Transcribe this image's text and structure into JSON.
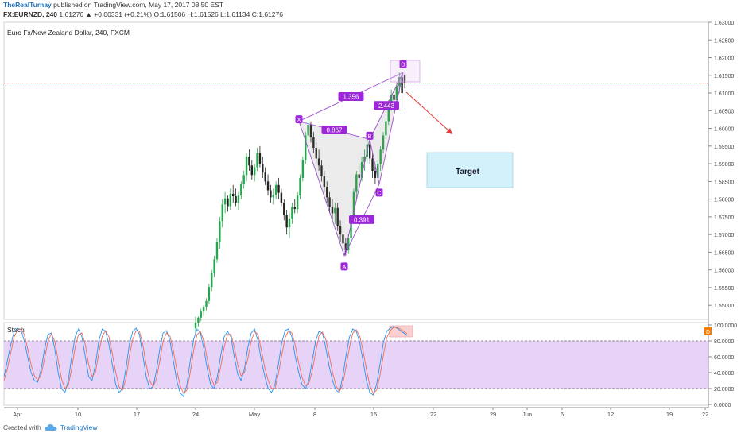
{
  "header": {
    "publisher": "TheRealTurnay",
    "published_text": "published on TradingView.com, May 17, 2017 08:50 EST",
    "symbol": "FX:EURNZD, 240",
    "last": "1.61276",
    "change_arrow": "▲",
    "change": "+0.00331 (+0.21%)",
    "o_label": "O:",
    "o_value": "1.61506",
    "h_label": "H:",
    "h_value": "1.61526",
    "l_label": "L:",
    "l_value": "1.61134",
    "c_label": "C:",
    "c_value": "1.61276"
  },
  "footer": {
    "created_with": "Created with",
    "brand": "TradingView",
    "logo_icon": "tradingview-cloud-icon"
  },
  "chart_data": [
    {
      "type": "candlestick",
      "title": "Euro Fx/New Zealand Dollar, 240, FXCM",
      "ylim": [
        1.546,
        1.63
      ],
      "y_ticks": [
        "1.63000",
        "1.62500",
        "1.62000",
        "1.61500",
        "1.61000",
        "1.60500",
        "1.60000",
        "1.59500",
        "1.59000",
        "1.58500",
        "1.58000",
        "1.57500",
        "1.57000",
        "1.56500",
        "1.56000",
        "1.55500",
        "1.55000"
      ],
      "x_ticks": [
        "Apr",
        "10",
        "17",
        "24",
        "May",
        "8",
        "15",
        "22",
        "29",
        "Jun",
        "6",
        "12",
        "19",
        "22"
      ],
      "current_price_line": 1.6128,
      "pattern": {
        "name": "Bat",
        "points": [
          {
            "label": "X",
            "x": "2017-05-06",
            "y": 1.602
          },
          {
            "label": "A",
            "x": "2017-05-10",
            "y": 1.564
          },
          {
            "label": "B",
            "x": "2017-05-13",
            "y": 1.5969
          },
          {
            "label": "C",
            "x": "2017-05-15",
            "y": 1.5842
          },
          {
            "label": "D",
            "x": "2017-05-17",
            "y": 1.6158
          }
        ],
        "ratios": [
          "1.356",
          "0.867",
          "2.443",
          "0.391"
        ]
      },
      "annotation": {
        "text": "Target"
      },
      "candles_ohlc": [
        [
          1.5435,
          1.5468,
          1.542,
          1.545
        ],
        [
          1.545,
          1.5468,
          1.544,
          1.5465
        ],
        [
          1.5465,
          1.549,
          1.5455,
          1.5482
        ],
        [
          1.5482,
          1.55,
          1.547,
          1.5495
        ],
        [
          1.5495,
          1.552,
          1.5485,
          1.5512
        ],
        [
          1.5512,
          1.556,
          1.5505,
          1.5552
        ],
        [
          1.5552,
          1.56,
          1.554,
          1.559
        ],
        [
          1.559,
          1.564,
          1.558,
          1.563
        ],
        [
          1.563,
          1.569,
          1.562,
          1.568
        ],
        [
          1.568,
          1.575,
          1.566,
          1.5738
        ],
        [
          1.5738,
          1.58,
          1.572,
          1.5785
        ],
        [
          1.5785,
          1.582,
          1.576,
          1.5802
        ],
        [
          1.5802,
          1.581,
          1.5765,
          1.578
        ],
        [
          1.578,
          1.583,
          1.577,
          1.5815
        ],
        [
          1.5815,
          1.584,
          1.579,
          1.5808
        ],
        [
          1.5808,
          1.583,
          1.578,
          1.579
        ],
        [
          1.579,
          1.582,
          1.577,
          1.581
        ],
        [
          1.581,
          1.585,
          1.58,
          1.5842
        ],
        [
          1.5842,
          1.588,
          1.583,
          1.5868
        ],
        [
          1.5868,
          1.593,
          1.585,
          1.592
        ],
        [
          1.592,
          1.594,
          1.588,
          1.5895
        ],
        [
          1.5895,
          1.591,
          1.5855,
          1.5868
        ],
        [
          1.5868,
          1.59,
          1.585,
          1.589
        ],
        [
          1.589,
          1.5945,
          1.588,
          1.593
        ],
        [
          1.593,
          1.595,
          1.589,
          1.59
        ],
        [
          1.59,
          1.592,
          1.586,
          1.5875
        ],
        [
          1.5875,
          1.589,
          1.584,
          1.585
        ],
        [
          1.585,
          1.587,
          1.581,
          1.5825
        ],
        [
          1.5825,
          1.584,
          1.579,
          1.5805
        ],
        [
          1.5805,
          1.583,
          1.5785,
          1.5812
        ],
        [
          1.5812,
          1.585,
          1.58,
          1.584
        ],
        [
          1.584,
          1.586,
          1.58,
          1.5818
        ],
        [
          1.5818,
          1.583,
          1.578,
          1.579
        ],
        [
          1.579,
          1.58,
          1.574,
          1.5755
        ],
        [
          1.5755,
          1.577,
          1.57,
          1.572
        ],
        [
          1.572,
          1.576,
          1.569,
          1.5745
        ],
        [
          1.5745,
          1.579,
          1.573,
          1.5778
        ],
        [
          1.5778,
          1.58,
          1.576,
          1.5772
        ],
        [
          1.5772,
          1.582,
          1.576,
          1.581
        ],
        [
          1.581,
          1.587,
          1.58,
          1.586
        ],
        [
          1.586,
          1.592,
          1.585,
          1.591
        ],
        [
          1.591,
          1.599,
          1.59,
          1.598
        ],
        [
          1.598,
          1.6025,
          1.5965,
          1.601
        ],
        [
          1.601,
          1.602,
          1.596,
          1.5975
        ],
        [
          1.5975,
          1.599,
          1.593,
          1.5945
        ],
        [
          1.5945,
          1.596,
          1.59,
          1.5915
        ],
        [
          1.5915,
          1.594,
          1.588,
          1.5895
        ],
        [
          1.5895,
          1.591,
          1.585,
          1.5865
        ],
        [
          1.5865,
          1.588,
          1.582,
          1.5835
        ],
        [
          1.5835,
          1.585,
          1.579,
          1.5805
        ],
        [
          1.5805,
          1.582,
          1.576,
          1.5778
        ],
        [
          1.5778,
          1.58,
          1.574,
          1.576
        ],
        [
          1.576,
          1.579,
          1.573,
          1.5775
        ],
        [
          1.5775,
          1.579,
          1.571,
          1.5725
        ],
        [
          1.5725,
          1.574,
          1.568,
          1.57
        ],
        [
          1.57,
          1.572,
          1.566,
          1.5675
        ],
        [
          1.5675,
          1.569,
          1.564,
          1.5655
        ],
        [
          1.5655,
          1.57,
          1.5645,
          1.569
        ],
        [
          1.569,
          1.576,
          1.568,
          1.575
        ],
        [
          1.575,
          1.583,
          1.574,
          1.582
        ],
        [
          1.582,
          1.588,
          1.58,
          1.587
        ],
        [
          1.587,
          1.59,
          1.584,
          1.586
        ],
        [
          1.586,
          1.592,
          1.585,
          1.5905
        ],
        [
          1.5905,
          1.594,
          1.588,
          1.592
        ],
        [
          1.592,
          1.597,
          1.59,
          1.5955
        ],
        [
          1.5955,
          1.5965,
          1.59,
          1.5915
        ],
        [
          1.5915,
          1.593,
          1.586,
          1.588
        ],
        [
          1.588,
          1.59,
          1.5842,
          1.586
        ],
        [
          1.586,
          1.591,
          1.585,
          1.59
        ],
        [
          1.59,
          1.595,
          1.588,
          1.594
        ],
        [
          1.594,
          1.599,
          1.593,
          1.598
        ],
        [
          1.598,
          1.603,
          1.597,
          1.602
        ],
        [
          1.602,
          1.608,
          1.601,
          1.607
        ],
        [
          1.607,
          1.611,
          1.605,
          1.6095
        ],
        [
          1.6095,
          1.6115,
          1.606,
          1.608
        ],
        [
          1.608,
          1.613,
          1.607,
          1.612
        ],
        [
          1.612,
          1.6158,
          1.61,
          1.6145
        ],
        [
          1.6145,
          1.6152,
          1.605,
          1.61
        ],
        [
          1.615,
          1.6153,
          1.6113,
          1.6128
        ]
      ]
    },
    {
      "type": "line",
      "title": "Stoch",
      "ylim": [
        0,
        100
      ],
      "y_ticks": [
        "100.0000",
        "80.0000",
        "60.0000",
        "40.0000",
        "20.0000",
        "0.0000"
      ],
      "bands": [
        20,
        80
      ],
      "series": [
        {
          "color": "#2196f3",
          "values": [
            35,
            55,
            75,
            92,
            96,
            94,
            80,
            60,
            40,
            30,
            28,
            45,
            70,
            88,
            90,
            70,
            40,
            20,
            15,
            30,
            60,
            85,
            95,
            85,
            60,
            35,
            30,
            50,
            80,
            95,
            92,
            75,
            50,
            25,
            15,
            20,
            45,
            75,
            92,
            96,
            88,
            62,
            35,
            20,
            22,
            42,
            70,
            90,
            93,
            80,
            55,
            30,
            15,
            10,
            25,
            55,
            82,
            95,
            90,
            70,
            45,
            25,
            20,
            35,
            62,
            85,
            92,
            85,
            60,
            38,
            30,
            45,
            72,
            90,
            95,
            80,
            55,
            35,
            20,
            15,
            25,
            50,
            78,
            93,
            95,
            85,
            60,
            40,
            25,
            20,
            30,
            55,
            80,
            92,
            90,
            72,
            48,
            30,
            18,
            15,
            35,
            62,
            85,
            95,
            92,
            78,
            55,
            30,
            15,
            12,
            25,
            50,
            78,
            92,
            96,
            98,
            96,
            93,
            90,
            87
          ]
        },
        {
          "color": "#ef6c5a",
          "values": [
            30,
            45,
            65,
            85,
            94,
            95,
            88,
            70,
            50,
            36,
            30,
            38,
            58,
            80,
            89,
            80,
            55,
            32,
            20,
            24,
            45,
            72,
            88,
            90,
            75,
            50,
            35,
            40,
            65,
            86,
            93,
            85,
            64,
            40,
            22,
            18,
            32,
            60,
            82,
            93,
            92,
            75,
            50,
            30,
            22,
            32,
            55,
            80,
            90,
            86,
            68,
            44,
            24,
            14,
            18,
            40,
            68,
            88,
            92,
            80,
            58,
            36,
            24,
            28,
            48,
            72,
            88,
            88,
            72,
            50,
            36,
            40,
            58,
            80,
            92,
            88,
            68,
            46,
            30,
            20,
            20,
            38,
            62,
            84,
            93,
            90,
            74,
            52,
            34,
            24,
            26,
            42,
            66,
            86,
            91,
            82,
            62,
            40,
            24,
            16,
            25,
            48,
            72,
            90,
            94,
            86,
            68,
            44,
            24,
            14,
            18,
            36,
            62,
            84,
            93,
            97,
            97,
            95,
            92,
            89
          ]
        }
      ]
    }
  ]
}
